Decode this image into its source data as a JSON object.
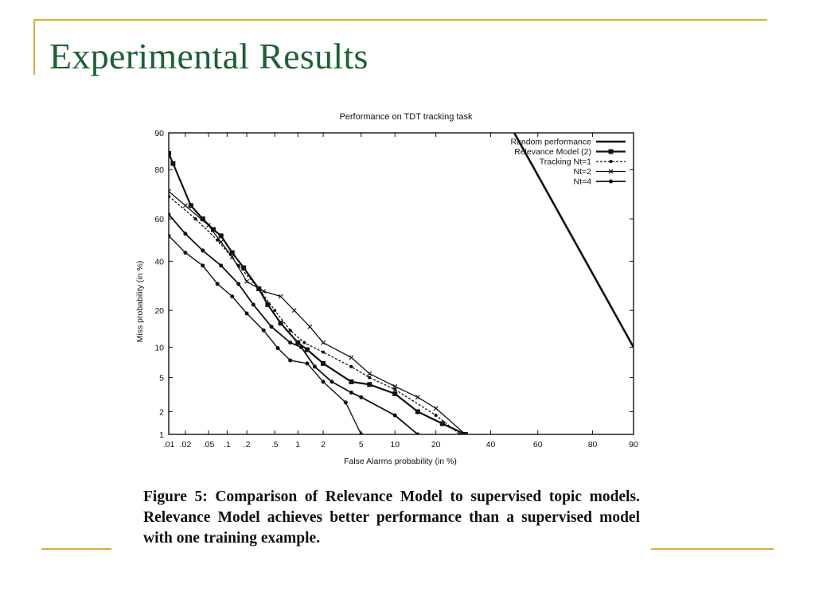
{
  "slide": {
    "title": "Experimental Results",
    "accent_color": "#dcae3a",
    "title_color": "#1d6134"
  },
  "caption": "Figure 5: Comparison of Relevance Model to supervised topic models. Relevance Model achieves better performance than a supervised model with one training example.",
  "chart_data": {
    "type": "line",
    "title": "Performance on TDT tracking task",
    "xlabel": "False Alarms probability (in %)",
    "ylabel": "Miss probability (in %)",
    "xscale": "normal-deviate",
    "yscale": "normal-deviate",
    "xlim": [
      0.01,
      90
    ],
    "ylim": [
      1,
      90
    ],
    "x_ticks": [
      {
        "value": 0.01,
        "label": ".01"
      },
      {
        "value": 0.02,
        "label": ".02"
      },
      {
        "value": 0.05,
        "label": ".05"
      },
      {
        "value": 0.1,
        "label": ".1"
      },
      {
        "value": 0.2,
        "label": ".2"
      },
      {
        "value": 0.5,
        "label": ".5"
      },
      {
        "value": 1,
        "label": "1"
      },
      {
        "value": 2,
        "label": "2"
      },
      {
        "value": 5,
        "label": "5"
      },
      {
        "value": 10,
        "label": "10"
      },
      {
        "value": 20,
        "label": "20"
      },
      {
        "value": 40,
        "label": "40"
      },
      {
        "value": 60,
        "label": "60"
      },
      {
        "value": 80,
        "label": "80"
      },
      {
        "value": 90,
        "label": "90"
      }
    ],
    "y_ticks": [
      {
        "value": 1,
        "label": "1"
      },
      {
        "value": 2,
        "label": "2"
      },
      {
        "value": 5,
        "label": "5"
      },
      {
        "value": 10,
        "label": "10"
      },
      {
        "value": 20,
        "label": "20"
      },
      {
        "value": 40,
        "label": "40"
      },
      {
        "value": 60,
        "label": "60"
      },
      {
        "value": 80,
        "label": "80"
      },
      {
        "value": 90,
        "label": "90"
      }
    ],
    "grid": false,
    "legend_position": "top-right",
    "series": [
      {
        "name": "Random performance",
        "style": "solid",
        "marker": "none",
        "width": 2.6,
        "points": [
          [
            50,
            90
          ],
          [
            90,
            10
          ]
        ]
      },
      {
        "name": "Relevance Model (2)",
        "style": "solid",
        "marker": "square",
        "width": 2.2,
        "points": [
          [
            0.01,
            85
          ],
          [
            0.012,
            82
          ],
          [
            0.025,
            66
          ],
          [
            0.04,
            60
          ],
          [
            0.06,
            55
          ],
          [
            0.08,
            52
          ],
          [
            0.12,
            44
          ],
          [
            0.18,
            37
          ],
          [
            0.3,
            28
          ],
          [
            0.4,
            22
          ],
          [
            0.6,
            16
          ],
          [
            1.0,
            11
          ],
          [
            1.3,
            9.5
          ],
          [
            2,
            7
          ],
          [
            4,
            4.5
          ],
          [
            6,
            4.2
          ],
          [
            10,
            3.3
          ],
          [
            15,
            2
          ],
          [
            22,
            1.4
          ],
          [
            30,
            1.0
          ]
        ]
      },
      {
        "name": "Tracking Nt=1",
        "style": "dashed",
        "marker": "circle",
        "width": 1.3,
        "points": [
          [
            0.01,
            70
          ],
          [
            0.03,
            60
          ],
          [
            0.07,
            50
          ],
          [
            0.15,
            38
          ],
          [
            0.3,
            28
          ],
          [
            0.5,
            20
          ],
          [
            0.8,
            14
          ],
          [
            1.2,
            11
          ],
          [
            2,
            9
          ],
          [
            4,
            6.5
          ],
          [
            6,
            5
          ],
          [
            10,
            3.7
          ],
          [
            20,
            1.8
          ],
          [
            28,
            1.0
          ]
        ]
      },
      {
        "name": "Nt=2",
        "style": "solid",
        "marker": "x",
        "width": 1.3,
        "points": [
          [
            0.01,
            72
          ],
          [
            0.02,
            66
          ],
          [
            0.05,
            57
          ],
          [
            0.08,
            49
          ],
          [
            0.12,
            42
          ],
          [
            0.2,
            31
          ],
          [
            0.35,
            27
          ],
          [
            0.6,
            25
          ],
          [
            0.9,
            20
          ],
          [
            1.4,
            15
          ],
          [
            2,
            11
          ],
          [
            4,
            8
          ],
          [
            6,
            5.5
          ],
          [
            10,
            4.0
          ],
          [
            15,
            3.0
          ],
          [
            20,
            2.2
          ],
          [
            30,
            1.0
          ]
        ]
      },
      {
        "name": "Nt=4",
        "style": "solid",
        "marker": "filled-circle",
        "width": 1.8,
        "points": [
          [
            0.01,
            62
          ],
          [
            0.02,
            53
          ],
          [
            0.04,
            45
          ],
          [
            0.08,
            38
          ],
          [
            0.15,
            30
          ],
          [
            0.25,
            22
          ],
          [
            0.45,
            15
          ],
          [
            0.8,
            11
          ],
          [
            1.1,
            10
          ],
          [
            1.6,
            6.5
          ],
          [
            2.5,
            4.5
          ],
          [
            4,
            3.4
          ],
          [
            5,
            3.0
          ],
          [
            10,
            1.8
          ],
          [
            15,
            1.0
          ]
        ]
      },
      {
        "name": "",
        "style": "solid",
        "marker": "filled-circle",
        "width": 1.4,
        "points": [
          [
            0.01,
            52
          ],
          [
            0.02,
            44
          ],
          [
            0.04,
            38
          ],
          [
            0.07,
            30
          ],
          [
            0.12,
            25
          ],
          [
            0.2,
            19
          ],
          [
            0.35,
            14
          ],
          [
            0.55,
            9.8
          ],
          [
            0.8,
            7.5
          ],
          [
            1.3,
            7.0
          ],
          [
            2,
            4.5
          ],
          [
            3.5,
            2.6
          ],
          [
            5,
            1.0
          ]
        ]
      }
    ]
  }
}
